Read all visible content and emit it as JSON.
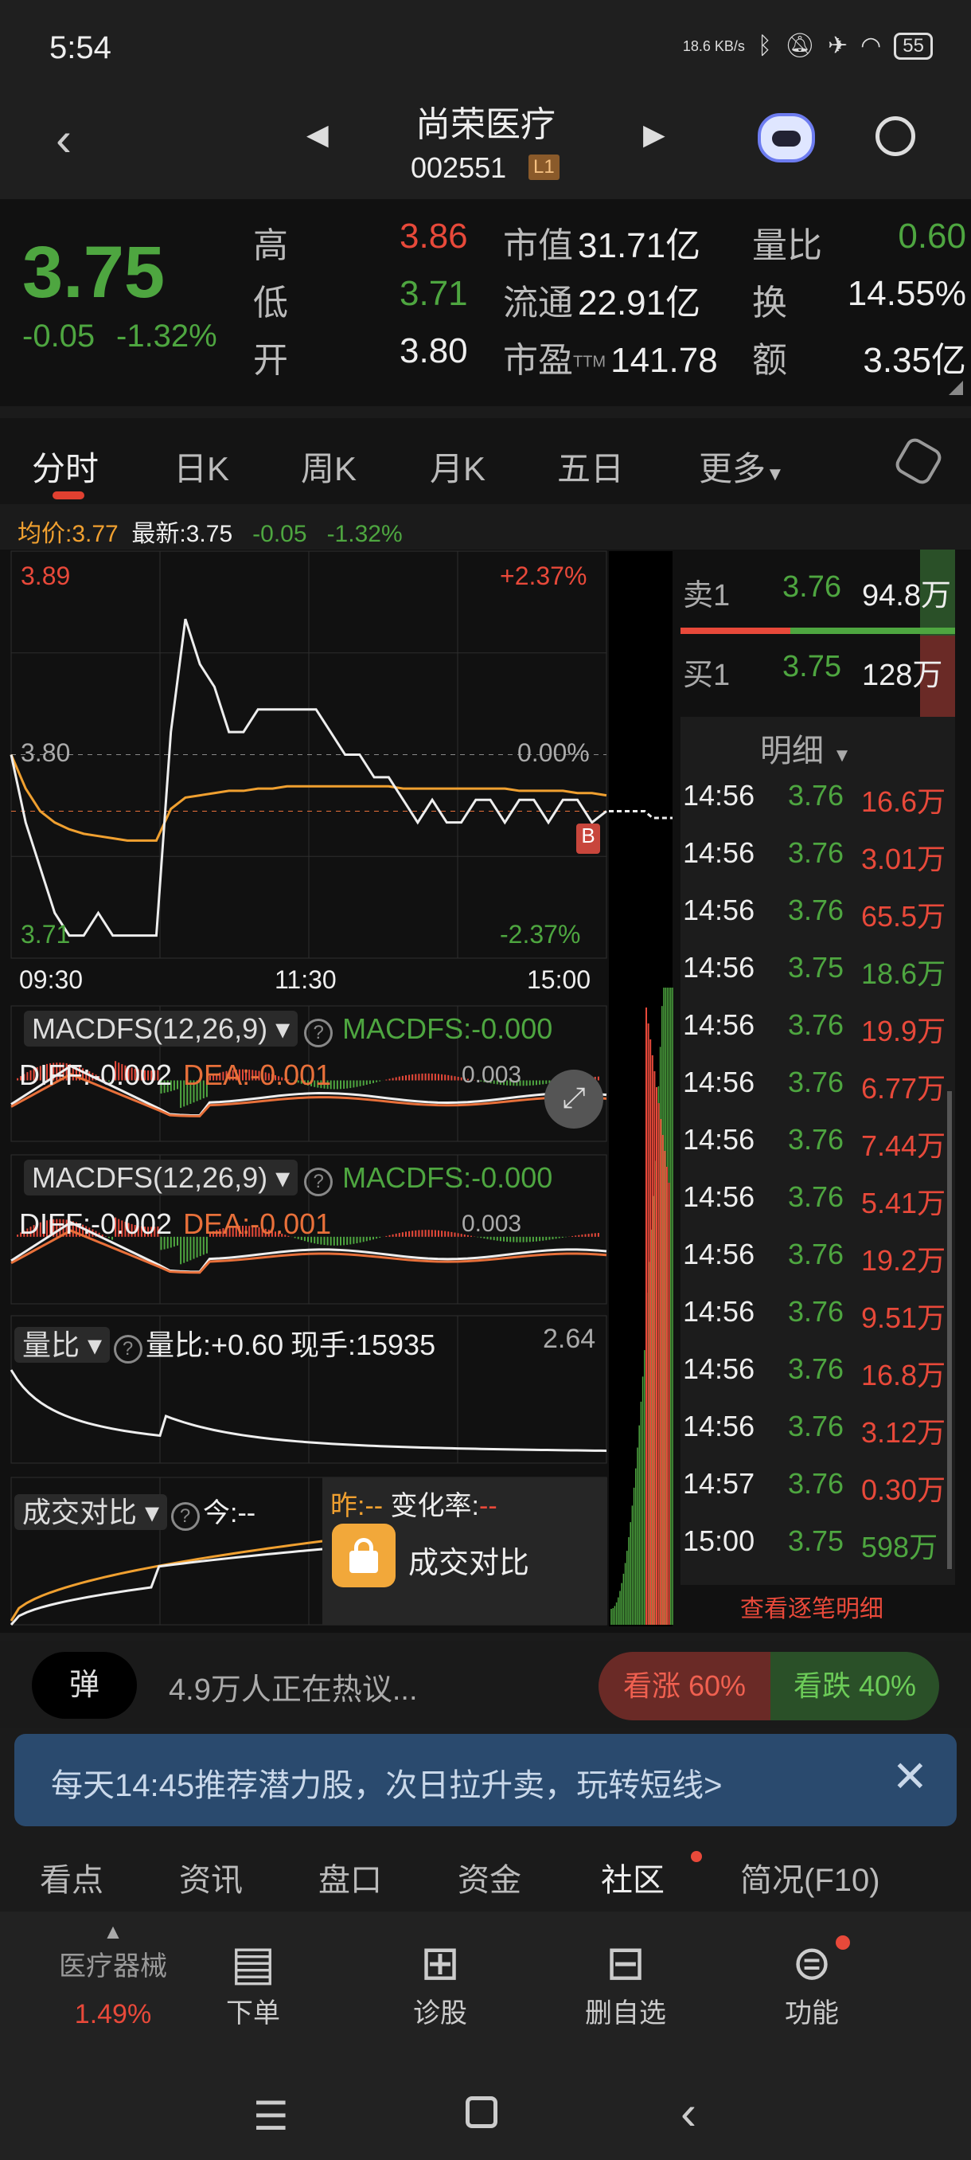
{
  "status_bar": {
    "time": "5:54",
    "net_speed": "18.6 KB/s",
    "battery": "55"
  },
  "header": {
    "title": "尚荣医疗",
    "code": "002551",
    "level_badge": "L1"
  },
  "quote": {
    "price": "3.75",
    "change": "-0.05",
    "change_pct": "-1.32%",
    "stats": [
      {
        "label": "高",
        "value": "3.86",
        "color": "red"
      },
      {
        "label": "低",
        "value": "3.71",
        "color": "green"
      },
      {
        "label": "开",
        "value": "3.80",
        "color": "white"
      }
    ],
    "stats2": [
      {
        "label": "市值",
        "value": "31.71亿"
      },
      {
        "label": "流通",
        "value": "22.91亿"
      },
      {
        "label": "市盈",
        "sup": "TTM",
        "value": "141.78"
      }
    ],
    "stats3": [
      {
        "label": "量比",
        "value": "0.60",
        "color": "green"
      },
      {
        "label": "换",
        "value": "14.55%",
        "color": "white"
      },
      {
        "label": "额",
        "value": "3.35亿",
        "color": "white"
      }
    ]
  },
  "tabs": [
    {
      "label": "分时",
      "active": true
    },
    {
      "label": "日K"
    },
    {
      "label": "周K"
    },
    {
      "label": "月K"
    },
    {
      "label": "五日"
    },
    {
      "label": "更多"
    }
  ],
  "info_line": {
    "avg": "均价:3.77",
    "latest": "最新:3.75",
    "change": "-0.05",
    "change_pct": "-1.32%"
  },
  "intraday": {
    "y_labels": {
      "high": "3.89",
      "mid": "3.80",
      "low": "3.71",
      "high_pct": "+2.37%",
      "mid_pct": "0.00%",
      "low_pct": "-2.37%"
    },
    "x_labels": [
      "09:30",
      "11:30",
      "15:00"
    ],
    "ylim": [
      3.71,
      3.89
    ],
    "price": [
      3.8,
      3.77,
      3.75,
      3.73,
      3.72,
      3.72,
      3.73,
      3.72,
      3.72,
      3.72,
      3.72,
      3.81,
      3.86,
      3.84,
      3.83,
      3.81,
      3.81,
      3.82,
      3.82,
      3.82,
      3.82,
      3.82,
      3.81,
      3.8,
      3.8,
      3.79,
      3.79,
      3.78,
      3.77,
      3.78,
      3.77,
      3.77,
      3.78,
      3.78,
      3.77,
      3.78,
      3.78,
      3.77,
      3.78,
      3.78,
      3.77,
      3.775
    ],
    "avg": [
      3.8,
      3.785,
      3.775,
      3.77,
      3.767,
      3.765,
      3.764,
      3.763,
      3.762,
      3.762,
      3.762,
      3.776,
      3.781,
      3.782,
      3.783,
      3.784,
      3.784,
      3.785,
      3.785,
      3.786,
      3.786,
      3.786,
      3.786,
      3.786,
      3.786,
      3.786,
      3.786,
      3.785,
      3.785,
      3.785,
      3.785,
      3.785,
      3.785,
      3.785,
      3.785,
      3.784,
      3.784,
      3.784,
      3.784,
      3.783,
      3.783,
      3.782
    ],
    "buy_marker": "B"
  },
  "order_book": {
    "sell": {
      "label": "卖1",
      "price": "3.76",
      "vol": "94.8万"
    },
    "buy": {
      "label": "买1",
      "price": "3.75",
      "vol": "128万"
    }
  },
  "detail": {
    "title": "明细",
    "rows": [
      {
        "t": "14:56",
        "p": "3.76",
        "v": "16.6万"
      },
      {
        "t": "14:56",
        "p": "3.76",
        "v": "3.01万"
      },
      {
        "t": "14:56",
        "p": "3.76",
        "v": "65.5万"
      },
      {
        "t": "14:56",
        "p": "3.75",
        "v": "18.6万",
        "vc": "green"
      },
      {
        "t": "14:56",
        "p": "3.76",
        "v": "19.9万"
      },
      {
        "t": "14:56",
        "p": "3.76",
        "v": "6.77万"
      },
      {
        "t": "14:56",
        "p": "3.76",
        "v": "7.44万"
      },
      {
        "t": "14:56",
        "p": "3.76",
        "v": "5.41万"
      },
      {
        "t": "14:56",
        "p": "3.76",
        "v": "19.2万"
      },
      {
        "t": "14:56",
        "p": "3.76",
        "v": "9.51万"
      },
      {
        "t": "14:56",
        "p": "3.76",
        "v": "16.8万"
      },
      {
        "t": "14:56",
        "p": "3.76",
        "v": "3.12万"
      },
      {
        "t": "14:57",
        "p": "3.76",
        "v": "0.30万"
      },
      {
        "t": "15:00",
        "p": "3.75",
        "v": "598万",
        "vc": "green"
      }
    ],
    "more": "查看逐笔明细"
  },
  "indicators": {
    "macd": {
      "name": "MACDFS(12,26,9)",
      "value": "MACDFS:-0.000",
      "top": "0.003",
      "diff": "DIFF:-0.002",
      "dea": "DEA:-0.001"
    },
    "volume_ratio": {
      "name": "量比",
      "value": "量比:+0.60",
      "hand": "现手:15935",
      "top": "2.64"
    },
    "turnover_compare": {
      "name": "成交对比",
      "today": "今:--",
      "yesterday": "昨:--",
      "rate_label": "变化率:",
      "rate": "--",
      "locked_label": "成交对比"
    }
  },
  "hot": {
    "badge": "弹",
    "text": "4.9万人正在热议...",
    "bull": "看涨 60%",
    "bear": "看跌 40%",
    "bull_pct": 60
  },
  "banner": {
    "text": "每天14:45推荐潜力股，次日拉升卖，玩转短线>"
  },
  "section_tabs": [
    "看点",
    "资讯",
    "盘口",
    "资金",
    "社区",
    "简况(F10)"
  ],
  "bottom_nav": {
    "sector": {
      "name": "医疗器械",
      "pct": "1.49%"
    },
    "items": [
      {
        "label": "下单"
      },
      {
        "label": "诊股"
      },
      {
        "label": "删自选"
      },
      {
        "label": "功能"
      }
    ]
  },
  "colors": {
    "up": "#e8493a",
    "down": "#4ea640",
    "avg": "#f0a030"
  }
}
